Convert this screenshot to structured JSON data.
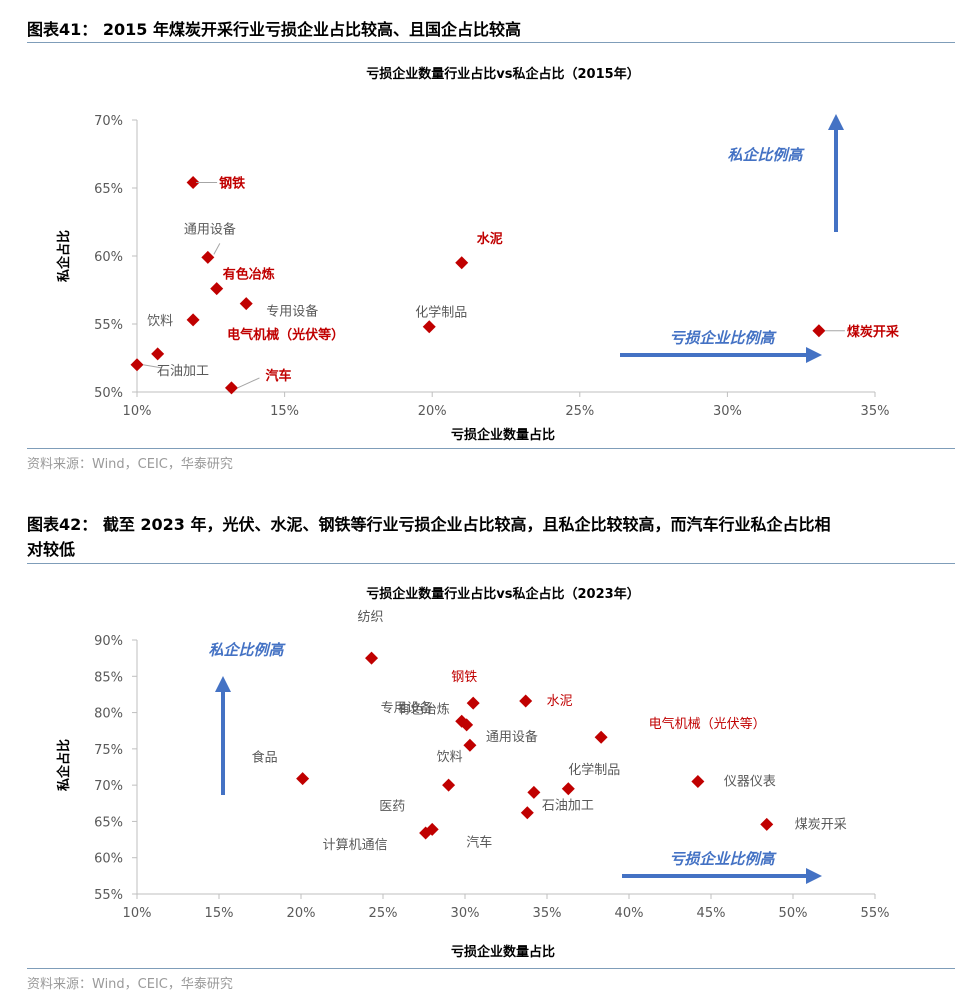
{
  "figure41": {
    "title": "图表41： 2015 年煤炭开采行业亏损企业占比较高、且国企占比较高",
    "source": "资料来源：Wind，CEIC，华泰研究"
  },
  "figure42": {
    "title_line1": "图表42： 截至 2023 年，光伏、水泥、钢铁等行业亏损企业占比较高，且私企比较较高，而汽车行业私企占比相",
    "title_line2": "对较低",
    "source": "资料来源：Wind，CEIC，华泰研究"
  },
  "chart_data": [
    {
      "type": "scatter",
      "title": "亏损企业数量行业占比vs私企占比（2015年）",
      "xlabel": "亏损企业数量占比",
      "ylabel": "私企占比",
      "xlim": [
        0.1,
        0.35
      ],
      "ylim": [
        0.5,
        0.7
      ],
      "xticks": [
        0.1,
        0.15,
        0.2,
        0.25,
        0.3,
        0.35
      ],
      "yticks": [
        0.5,
        0.55,
        0.6,
        0.65,
        0.7
      ],
      "xtick_labels": [
        "10%",
        "15%",
        "20%",
        "25%",
        "30%",
        "35%"
      ],
      "ytick_labels": [
        "50%",
        "55%",
        "60%",
        "65%",
        "70%"
      ],
      "marker_color": "#c00000",
      "annotations": {
        "up": "私企比例高",
        "right": "亏损企业比例高"
      },
      "points": [
        {
          "name": "钢铁",
          "x": 0.119,
          "y": 0.654,
          "highlight": true,
          "leader": true
        },
        {
          "name": "通用设备",
          "x": 0.124,
          "y": 0.599,
          "highlight": false,
          "leader": true
        },
        {
          "name": "有色冶炼",
          "x": 0.127,
          "y": 0.576,
          "highlight": true,
          "leader": false
        },
        {
          "name": "专用设备",
          "x": 0.137,
          "y": 0.565,
          "highlight": false,
          "leader": false
        },
        {
          "name": "饮料",
          "x": 0.119,
          "y": 0.553,
          "highlight": false,
          "leader": false
        },
        {
          "name": "电气机械（光伏等）",
          "x": 0.107,
          "y": 0.528,
          "highlight": true,
          "leader": false
        },
        {
          "name": "石油加工",
          "x": 0.1,
          "y": 0.52,
          "highlight": false,
          "leader": true
        },
        {
          "name": "汽车",
          "x": 0.132,
          "y": 0.503,
          "highlight": true,
          "leader": true
        },
        {
          "name": "化学制品",
          "x": 0.199,
          "y": 0.548,
          "highlight": false,
          "leader": false
        },
        {
          "name": "水泥",
          "x": 0.21,
          "y": 0.595,
          "highlight": true,
          "leader": false
        },
        {
          "name": "煤炭开采",
          "x": 0.331,
          "y": 0.545,
          "highlight": true,
          "leader": true
        }
      ]
    },
    {
      "type": "scatter",
      "title": "亏损企业数量行业占比vs私企占比（2023年）",
      "xlabel": "亏损企业数量占比",
      "ylabel": "私企占比",
      "xlim": [
        0.1,
        0.55
      ],
      "ylim": [
        0.55,
        0.9
      ],
      "xticks": [
        0.1,
        0.15,
        0.2,
        0.25,
        0.3,
        0.35,
        0.4,
        0.45,
        0.5,
        0.55
      ],
      "yticks": [
        0.55,
        0.6,
        0.65,
        0.7,
        0.75,
        0.8,
        0.85,
        0.9
      ],
      "xtick_labels": [
        "10%",
        "15%",
        "20%",
        "25%",
        "30%",
        "35%",
        "40%",
        "45%",
        "50%",
        "55%"
      ],
      "ytick_labels": [
        "55%",
        "60%",
        "65%",
        "70%",
        "75%",
        "80%",
        "85%",
        "90%"
      ],
      "marker_color": "#c00000",
      "annotations": {
        "up": "私企比例高",
        "right": "亏损企业比例高"
      },
      "points": [
        {
          "name": "纺织",
          "x": 0.243,
          "y": 0.875,
          "highlight": false
        },
        {
          "name": "钢铁",
          "x": 0.305,
          "y": 0.813,
          "highlight": true
        },
        {
          "name": "水泥",
          "x": 0.337,
          "y": 0.816,
          "highlight": true
        },
        {
          "name": "有色冶炼",
          "x": 0.298,
          "y": 0.788,
          "highlight": false
        },
        {
          "name": "专用设备",
          "x": 0.301,
          "y": 0.783,
          "highlight": false
        },
        {
          "name": "通用设备",
          "x": 0.303,
          "y": 0.755,
          "highlight": false
        },
        {
          "name": "电气机械（光伏等）",
          "x": 0.383,
          "y": 0.766,
          "highlight": true
        },
        {
          "name": "食品",
          "x": 0.201,
          "y": 0.709,
          "highlight": false
        },
        {
          "name": "饮料",
          "x": 0.29,
          "y": 0.7,
          "highlight": false
        },
        {
          "name": "化学制品",
          "x": 0.363,
          "y": 0.695,
          "highlight": false
        },
        {
          "name": "石油加工",
          "x": 0.342,
          "y": 0.69,
          "highlight": false
        },
        {
          "name": "仪器仪表",
          "x": 0.442,
          "y": 0.705,
          "highlight": false
        },
        {
          "name": "医药",
          "x": 0.338,
          "y": 0.662,
          "highlight": false
        },
        {
          "name": "计算机通信",
          "x": 0.276,
          "y": 0.634,
          "highlight": false
        },
        {
          "name": "汽车",
          "x": 0.28,
          "y": 0.639,
          "highlight": false
        },
        {
          "name": "煤炭开采",
          "x": 0.484,
          "y": 0.646,
          "highlight": false
        }
      ]
    }
  ]
}
